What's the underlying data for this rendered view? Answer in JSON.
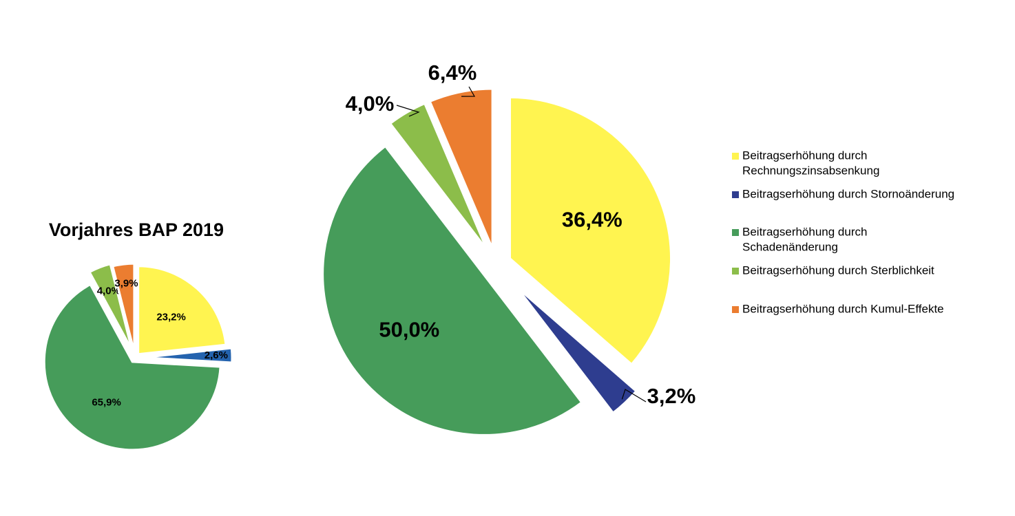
{
  "chart_data": [
    {
      "type": "pie",
      "title": "Vorjahres BAP 2019",
      "start_angle_deg": 0,
      "slices": [
        {
          "name": "Beitragserhöhung durch Rechnungszinsabsenkung",
          "label": "23,2%",
          "value": 23.2,
          "color": "#FFF450"
        },
        {
          "name": "Beitragserhöhung durch Stornoänderung",
          "label": "2,6%",
          "value": 2.6,
          "color": "#2463AE"
        },
        {
          "name": "Beitragserhöhung durch Schadenänderung",
          "label": "65,9%",
          "value": 65.9,
          "color": "#469C5A"
        },
        {
          "name": "Beitragserhöhung durch Sterblichkeit",
          "label": "4,0%",
          "value": 4.0,
          "color": "#8CBD4A"
        },
        {
          "name": "Beitragserhöhung durch Kumul-Effekte",
          "label": "3,9%",
          "value": 3.9,
          "color": "#EB7D30"
        }
      ]
    },
    {
      "type": "pie",
      "title": "",
      "start_angle_deg": 0,
      "slices": [
        {
          "name": "Beitragserhöhung durch Rechnungszinsabsenkung",
          "label": "36,4%",
          "value": 36.4,
          "color": "#FFF450"
        },
        {
          "name": "Beitragserhöhung durch Stornoänderung",
          "label": "3,2%",
          "value": 3.2,
          "color": "#2E3D8F"
        },
        {
          "name": "Beitragserhöhung durch Schadenänderung",
          "label": "50,0%",
          "value": 50.0,
          "color": "#469C5A"
        },
        {
          "name": "Beitragserhöhung durch Sterblichkeit",
          "label": "4,0%",
          "value": 4.0,
          "color": "#8CBD4A"
        },
        {
          "name": "Beitragserhöhung durch Kumul-Effekte",
          "label": "6,4%",
          "value": 6.4,
          "color": "#EB7D30"
        }
      ]
    }
  ],
  "legend": {
    "placement": "right",
    "items": [
      {
        "lines": [
          "Beitragserhöhung durch",
          "Rechnungszinsabsenkung"
        ],
        "color": "#FFF450"
      },
      {
        "lines": [
          "Beitragserhöhung durch Stornoänderung"
        ],
        "color": "#2E3D8F"
      },
      {
        "lines": [
          "Beitragserhöhung durch",
          "Schadenänderung"
        ],
        "color": "#469C5A"
      },
      {
        "lines": [
          "Beitragserhöhung durch Sterblichkeit"
        ],
        "color": "#8CBD4A"
      },
      {
        "lines": [
          "Beitragserhöhung durch Kumul-Effekte"
        ],
        "color": "#EB7D30"
      }
    ]
  }
}
